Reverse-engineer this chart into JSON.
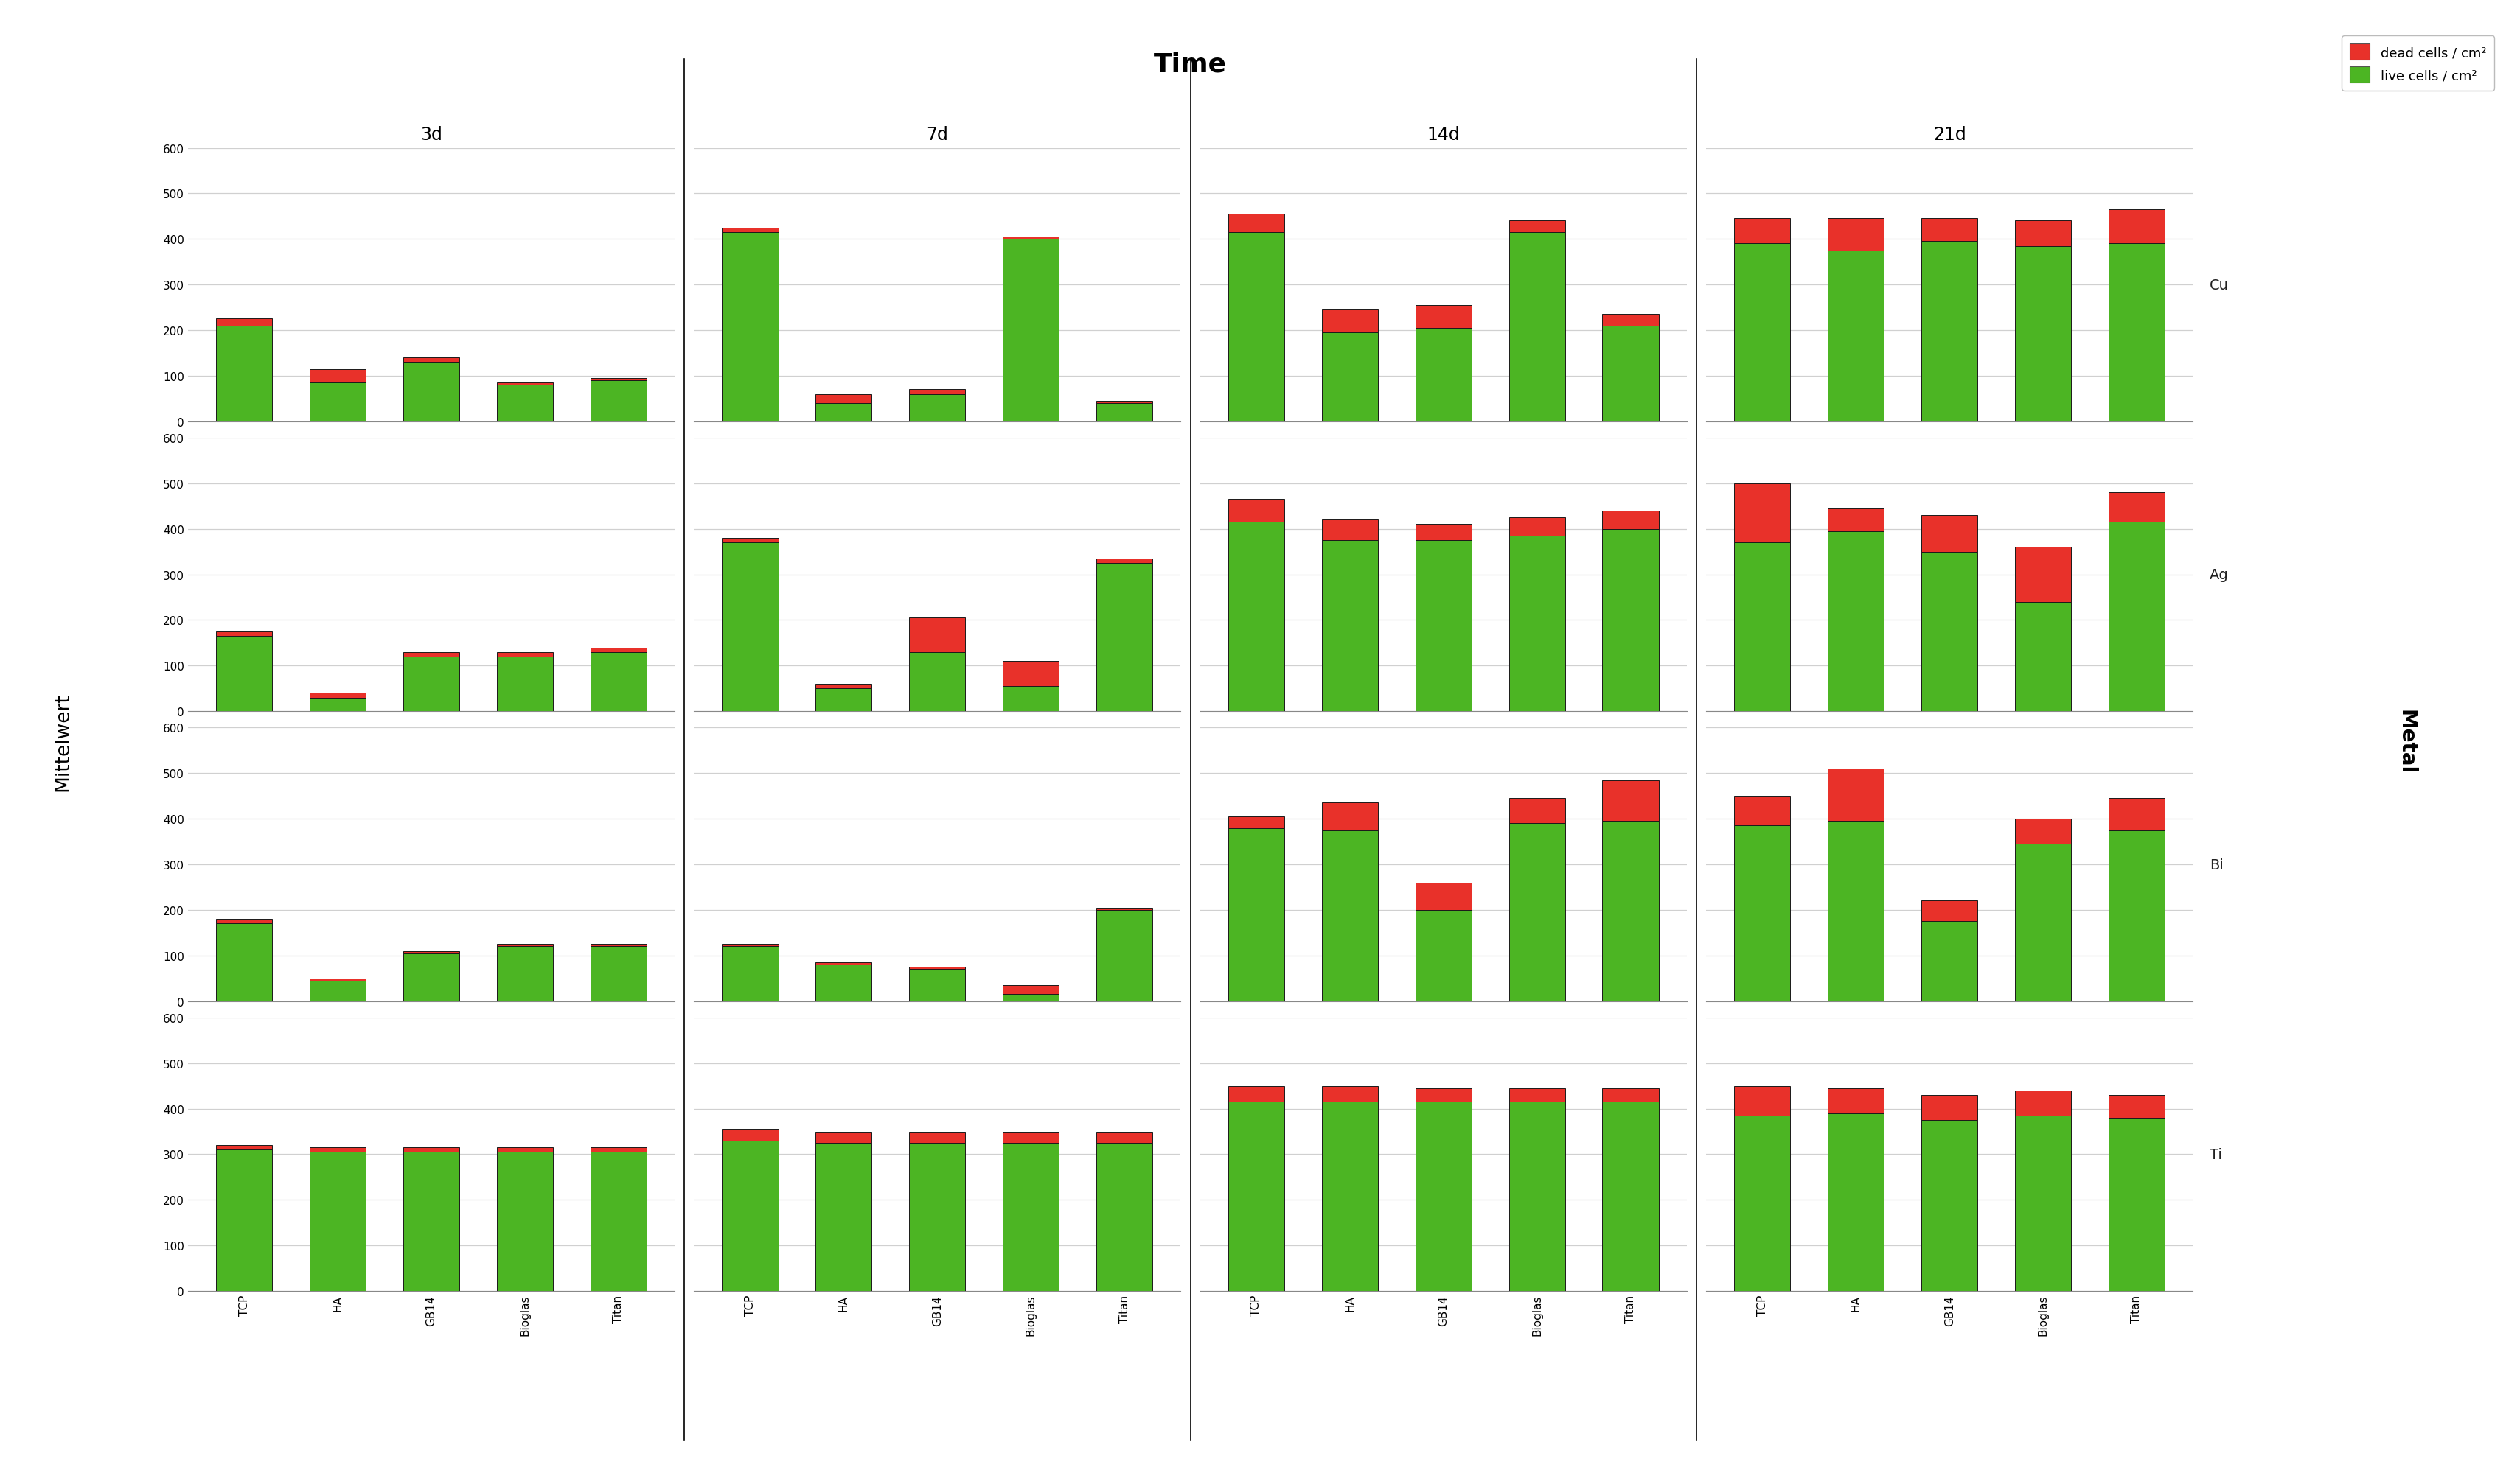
{
  "metals": [
    "Cu",
    "Ag",
    "Bi",
    "Ti"
  ],
  "times": [
    "3d",
    "7d",
    "14d",
    "21d"
  ],
  "categories": [
    "TCP",
    "HA",
    "GB14",
    "Bioglas",
    "Titan"
  ],
  "title": "Time",
  "ylabel": "Mittelwert",
  "right_label": "Metal",
  "ylim": [
    0,
    600
  ],
  "yticks": [
    0,
    100,
    200,
    300,
    400,
    500,
    600
  ],
  "live_color": "#4cb523",
  "dead_color": "#e8312a",
  "subplot_bg": "#ffffff",
  "fig_bg": "#ffffff",
  "bar_edge_color": "#1a1a1a",
  "grid_color": "#d0d0d0",
  "data": {
    "Cu": {
      "3d": {
        "live": [
          210,
          85,
          130,
          80,
          90
        ],
        "dead": [
          15,
          30,
          10,
          5,
          5
        ]
      },
      "7d": {
        "live": [
          415,
          40,
          60,
          400,
          40
        ],
        "dead": [
          10,
          20,
          10,
          5,
          5
        ]
      },
      "14d": {
        "live": [
          415,
          195,
          205,
          415,
          210
        ],
        "dead": [
          40,
          50,
          50,
          25,
          25
        ]
      },
      "21d": {
        "live": [
          390,
          375,
          395,
          385,
          390
        ],
        "dead": [
          55,
          70,
          50,
          55,
          75
        ]
      }
    },
    "Ag": {
      "3d": {
        "live": [
          165,
          30,
          120,
          120,
          130
        ],
        "dead": [
          10,
          10,
          10,
          10,
          10
        ]
      },
      "7d": {
        "live": [
          370,
          50,
          130,
          55,
          325
        ],
        "dead": [
          10,
          10,
          75,
          55,
          10
        ]
      },
      "14d": {
        "live": [
          415,
          375,
          375,
          385,
          400
        ],
        "dead": [
          50,
          45,
          35,
          40,
          40
        ]
      },
      "21d": {
        "live": [
          370,
          395,
          350,
          240,
          415
        ],
        "dead": [
          130,
          50,
          80,
          120,
          65
        ]
      }
    },
    "Bi": {
      "3d": {
        "live": [
          170,
          45,
          105,
          120,
          120
        ],
        "dead": [
          10,
          5,
          5,
          5,
          5
        ]
      },
      "7d": {
        "live": [
          120,
          80,
          70,
          15,
          200
        ],
        "dead": [
          5,
          5,
          5,
          20,
          5
        ]
      },
      "14d": {
        "live": [
          380,
          375,
          200,
          390,
          395
        ],
        "dead": [
          25,
          60,
          60,
          55,
          90
        ]
      },
      "21d": {
        "live": [
          385,
          395,
          175,
          345,
          375
        ],
        "dead": [
          65,
          115,
          45,
          55,
          70
        ]
      }
    },
    "Ti": {
      "3d": {
        "live": [
          310,
          305,
          305,
          305,
          305
        ],
        "dead": [
          10,
          10,
          10,
          10,
          10
        ]
      },
      "7d": {
        "live": [
          330,
          325,
          325,
          325,
          325
        ],
        "dead": [
          25,
          25,
          25,
          25,
          25
        ]
      },
      "14d": {
        "live": [
          415,
          415,
          415,
          415,
          415
        ],
        "dead": [
          35,
          35,
          30,
          30,
          30
        ]
      },
      "21d": {
        "live": [
          385,
          390,
          375,
          385,
          380
        ],
        "dead": [
          65,
          55,
          55,
          55,
          50
        ]
      }
    }
  }
}
